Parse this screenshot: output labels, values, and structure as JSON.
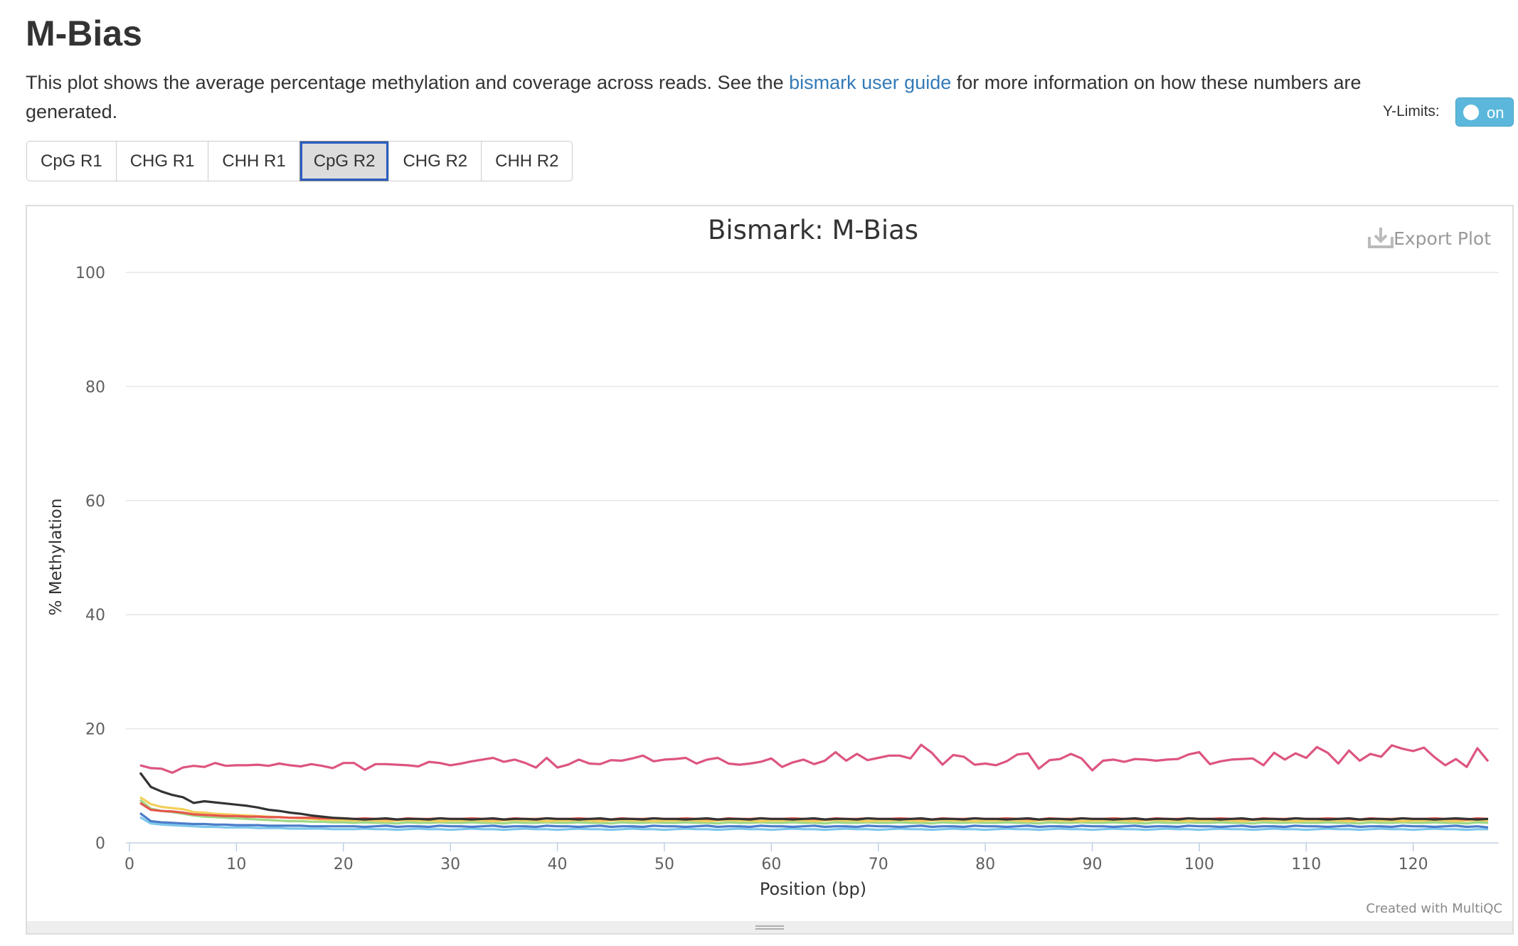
{
  "header": {
    "title": "M-Bias",
    "description_before": "This plot shows the average percentage methylation and coverage across reads. See the ",
    "link_text": "bismark user guide",
    "description_after": " for more information on how these numbers are generated.",
    "ylimits_label": "Y-Limits:",
    "toggle_text": "on"
  },
  "buttons": [
    "CpG R1",
    "CHG R1",
    "CHH R1",
    "CpG R2",
    "CHG R2",
    "CHH R2"
  ],
  "active_button": 3,
  "export_label": "Export Plot",
  "credit": "Created with MultiQC",
  "chart_data": {
    "type": "line",
    "title": "Bismark: M-Bias",
    "x_label": "Position (bp)",
    "y_label": "% Methylation",
    "xlim": [
      0,
      128
    ],
    "ylim": [
      0,
      100
    ],
    "xticks": [
      0,
      10,
      20,
      30,
      40,
      50,
      60,
      70,
      80,
      90,
      100,
      110,
      120
    ],
    "yticks": [
      0,
      20,
      40,
      60,
      80,
      100
    ],
    "grid": true,
    "x": [
      1,
      2,
      3,
      4,
      5,
      6,
      7,
      8,
      9,
      10,
      11,
      12,
      13,
      14,
      15,
      16,
      17,
      18,
      19,
      20,
      21,
      22,
      23,
      24,
      25,
      26,
      27,
      28,
      29,
      30,
      31,
      32,
      33,
      34,
      35,
      36,
      37,
      38,
      39,
      40,
      41,
      42,
      43,
      44,
      45,
      46,
      47,
      48,
      49,
      50,
      51,
      52,
      53,
      54,
      55,
      56,
      57,
      58,
      59,
      60,
      61,
      62,
      63,
      64,
      65,
      66,
      67,
      68,
      69,
      70,
      71,
      72,
      73,
      74,
      75,
      76,
      77,
      78,
      79,
      80,
      81,
      82,
      83,
      84,
      85,
      86,
      87,
      88,
      89,
      90,
      91,
      92,
      93,
      94,
      95,
      96,
      97,
      98,
      99,
      100,
      101,
      102,
      103,
      104,
      105,
      106,
      107,
      108,
      109,
      110,
      111,
      112,
      113,
      114,
      115,
      116,
      117,
      118,
      119,
      120,
      121,
      122,
      123,
      124,
      125,
      126,
      127
    ],
    "series": [
      {
        "color": "#7cc6ec",
        "values": [
          4.5,
          3.4,
          3.2,
          3.1,
          3.0,
          2.9,
          2.8,
          2.8,
          2.7,
          2.7,
          2.7,
          2.6,
          2.6,
          2.6,
          2.5,
          2.5,
          2.5,
          2.5,
          2.4,
          2.4,
          2.4,
          2.5,
          2.4,
          2.4,
          2.3,
          2.4,
          2.5,
          2.4,
          2.4,
          2.3,
          2.4,
          2.5,
          2.4,
          2.4,
          2.3,
          2.4,
          2.5,
          2.4,
          2.4,
          2.3,
          2.4,
          2.5,
          2.4,
          2.4,
          2.3,
          2.4,
          2.5,
          2.4,
          2.4,
          2.3,
          2.4,
          2.5,
          2.4,
          2.4,
          2.3,
          2.4,
          2.5,
          2.4,
          2.4,
          2.3,
          2.4,
          2.5,
          2.4,
          2.4,
          2.3,
          2.4,
          2.5,
          2.4,
          2.4,
          2.3,
          2.4,
          2.5,
          2.4,
          2.4,
          2.3,
          2.4,
          2.5,
          2.4,
          2.4,
          2.3,
          2.4,
          2.5,
          2.4,
          2.4,
          2.3,
          2.4,
          2.5,
          2.4,
          2.4,
          2.3,
          2.4,
          2.5,
          2.4,
          2.4,
          2.3,
          2.4,
          2.5,
          2.4,
          2.4,
          2.3,
          2.4,
          2.5,
          2.4,
          2.4,
          2.3,
          2.4,
          2.5,
          2.4,
          2.4,
          2.3,
          2.4,
          2.5,
          2.4,
          2.4,
          2.3,
          2.4,
          2.5,
          2.4,
          2.4,
          2.3,
          2.4,
          2.5,
          2.4,
          2.4,
          2.3,
          2.4,
          2.4
        ]
      },
      {
        "color": "#4a7cc9",
        "values": [
          5.2,
          3.8,
          3.6,
          3.5,
          3.4,
          3.3,
          3.3,
          3.2,
          3.2,
          3.1,
          3.1,
          3.1,
          3.0,
          3.0,
          3.0,
          3.0,
          2.9,
          2.9,
          2.9,
          2.9,
          2.9,
          2.8,
          2.9,
          3.0,
          2.8,
          2.9,
          2.9,
          2.8,
          3.0,
          2.9,
          2.9,
          2.8,
          2.9,
          3.0,
          2.8,
          2.9,
          2.9,
          2.8,
          3.0,
          2.9,
          2.9,
          2.8,
          2.9,
          3.0,
          2.8,
          2.9,
          2.9,
          2.8,
          3.0,
          2.9,
          2.9,
          2.8,
          2.9,
          3.0,
          2.8,
          2.9,
          2.9,
          2.8,
          3.0,
          2.9,
          2.9,
          2.8,
          2.9,
          3.0,
          2.8,
          2.9,
          2.9,
          2.8,
          3.0,
          2.9,
          2.9,
          2.8,
          2.9,
          3.0,
          2.8,
          2.9,
          2.9,
          2.8,
          3.0,
          2.9,
          2.9,
          2.8,
          2.9,
          3.0,
          2.8,
          2.9,
          2.9,
          2.8,
          3.0,
          2.9,
          2.9,
          2.8,
          2.9,
          3.0,
          2.8,
          2.9,
          2.9,
          2.8,
          3.0,
          2.9,
          2.9,
          2.8,
          2.9,
          3.0,
          2.8,
          2.9,
          2.9,
          2.8,
          3.0,
          2.9,
          2.9,
          2.8,
          2.9,
          3.0,
          2.8,
          2.9,
          2.9,
          2.8,
          3.0,
          2.9,
          2.9,
          2.8,
          2.9,
          3.0,
          2.8,
          2.9,
          2.7
        ]
      },
      {
        "color": "#9ed888",
        "values": [
          7.5,
          6.0,
          5.6,
          5.4,
          5.1,
          4.8,
          4.6,
          4.5,
          4.4,
          4.3,
          4.2,
          4.1,
          4.0,
          3.9,
          3.8,
          3.8,
          3.7,
          3.7,
          3.6,
          3.6,
          3.5,
          3.6,
          3.5,
          3.5,
          3.4,
          3.6,
          3.5,
          3.5,
          3.6,
          3.5,
          3.5,
          3.6,
          3.5,
          3.5,
          3.4,
          3.6,
          3.5,
          3.5,
          3.6,
          3.5,
          3.5,
          3.6,
          3.5,
          3.5,
          3.4,
          3.6,
          3.5,
          3.5,
          3.6,
          3.5,
          3.5,
          3.6,
          3.5,
          3.5,
          3.4,
          3.6,
          3.5,
          3.5,
          3.6,
          3.5,
          3.5,
          3.6,
          3.5,
          3.5,
          3.4,
          3.6,
          3.5,
          3.5,
          3.6,
          3.5,
          3.5,
          3.6,
          3.5,
          3.5,
          3.4,
          3.6,
          3.5,
          3.5,
          3.6,
          3.5,
          3.5,
          3.6,
          3.5,
          3.5,
          3.4,
          3.6,
          3.5,
          3.5,
          3.6,
          3.5,
          3.5,
          3.6,
          3.5,
          3.5,
          3.4,
          3.6,
          3.5,
          3.5,
          3.6,
          3.5,
          3.5,
          3.6,
          3.5,
          3.5,
          3.4,
          3.6,
          3.5,
          3.5,
          3.6,
          3.5,
          3.5,
          3.6,
          3.5,
          3.5,
          3.4,
          3.6,
          3.5,
          3.5,
          3.6,
          3.5,
          3.5,
          3.6,
          3.5,
          3.5,
          3.4,
          3.6,
          3.5
        ]
      },
      {
        "color": "#f2cf5b",
        "values": [
          8.0,
          6.8,
          6.3,
          6.1,
          5.9,
          5.4,
          5.3,
          5.1,
          5.0,
          4.9,
          4.8,
          4.7,
          4.6,
          4.5,
          4.4,
          4.3,
          4.2,
          4.1,
          4.0,
          4.0,
          3.9,
          4.0,
          3.9,
          3.8,
          3.9,
          4.0,
          3.9,
          3.9,
          3.8,
          3.9,
          3.9,
          4.0,
          3.9,
          3.8,
          3.9,
          4.0,
          3.9,
          3.9,
          3.8,
          3.9,
          3.9,
          4.0,
          3.9,
          3.8,
          3.9,
          4.0,
          3.9,
          3.9,
          3.8,
          3.9,
          3.9,
          4.0,
          3.9,
          3.8,
          3.9,
          4.0,
          3.9,
          3.9,
          3.8,
          3.9,
          3.9,
          4.0,
          3.9,
          3.8,
          3.9,
          4.0,
          3.9,
          3.9,
          3.8,
          3.9,
          3.9,
          4.0,
          3.9,
          3.8,
          3.9,
          4.0,
          3.9,
          3.9,
          3.8,
          3.9,
          3.9,
          4.0,
          3.9,
          3.8,
          3.9,
          4.0,
          3.9,
          3.9,
          3.8,
          3.9,
          3.9,
          4.0,
          3.9,
          3.8,
          3.9,
          4.0,
          3.9,
          3.9,
          3.8,
          3.9,
          3.9,
          4.0,
          3.9,
          3.8,
          3.9,
          4.0,
          3.9,
          3.9,
          3.8,
          3.9,
          3.9,
          4.0,
          3.9,
          3.8,
          3.9,
          4.0,
          3.9,
          3.9,
          3.8,
          3.9,
          3.9,
          4.0,
          3.9,
          3.8,
          3.9,
          4.0,
          3.9
        ]
      },
      {
        "color": "#e4564b",
        "values": [
          7.0,
          5.8,
          5.6,
          5.5,
          5.3,
          5.0,
          4.9,
          4.8,
          4.7,
          4.7,
          4.6,
          4.6,
          4.5,
          4.5,
          4.4,
          4.4,
          4.4,
          4.3,
          4.3,
          4.3,
          4.2,
          4.3,
          4.2,
          4.2,
          4.1,
          4.3,
          4.2,
          4.2,
          4.3,
          4.2,
          4.2,
          4.3,
          4.2,
          4.2,
          4.1,
          4.3,
          4.2,
          4.2,
          4.3,
          4.2,
          4.2,
          4.3,
          4.2,
          4.2,
          4.1,
          4.3,
          4.2,
          4.2,
          4.3,
          4.2,
          4.2,
          4.3,
          4.2,
          4.2,
          4.1,
          4.3,
          4.2,
          4.2,
          4.3,
          4.2,
          4.2,
          4.3,
          4.2,
          4.2,
          4.1,
          4.3,
          4.2,
          4.2,
          4.3,
          4.2,
          4.2,
          4.3,
          4.2,
          4.2,
          4.1,
          4.3,
          4.2,
          4.2,
          4.3,
          4.2,
          4.2,
          4.3,
          4.2,
          4.2,
          4.1,
          4.3,
          4.2,
          4.2,
          4.3,
          4.2,
          4.2,
          4.3,
          4.2,
          4.2,
          4.1,
          4.3,
          4.2,
          4.2,
          4.3,
          4.2,
          4.2,
          4.3,
          4.2,
          4.2,
          4.1,
          4.3,
          4.2,
          4.2,
          4.3,
          4.2,
          4.2,
          4.3,
          4.2,
          4.2,
          4.1,
          4.3,
          4.2,
          4.2,
          4.3,
          4.2,
          4.2,
          4.3,
          4.2,
          4.2,
          4.1,
          4.3,
          4.2
        ]
      },
      {
        "color": "#333333",
        "values": [
          12.3,
          9.8,
          9.0,
          8.4,
          8.0,
          7.0,
          7.3,
          7.1,
          6.9,
          6.7,
          6.5,
          6.2,
          5.8,
          5.6,
          5.3,
          5.1,
          4.8,
          4.6,
          4.4,
          4.3,
          4.2,
          4.1,
          4.2,
          4.3,
          4.1,
          4.2,
          4.2,
          4.1,
          4.3,
          4.2,
          4.2,
          4.1,
          4.2,
          4.3,
          4.1,
          4.2,
          4.2,
          4.1,
          4.3,
          4.2,
          4.2,
          4.1,
          4.2,
          4.3,
          4.1,
          4.2,
          4.2,
          4.1,
          4.3,
          4.2,
          4.2,
          4.1,
          4.2,
          4.3,
          4.1,
          4.2,
          4.2,
          4.1,
          4.3,
          4.2,
          4.2,
          4.1,
          4.2,
          4.3,
          4.1,
          4.2,
          4.2,
          4.1,
          4.3,
          4.2,
          4.2,
          4.1,
          4.2,
          4.3,
          4.1,
          4.2,
          4.2,
          4.1,
          4.3,
          4.2,
          4.2,
          4.1,
          4.2,
          4.3,
          4.1,
          4.2,
          4.2,
          4.1,
          4.3,
          4.2,
          4.2,
          4.1,
          4.2,
          4.3,
          4.1,
          4.2,
          4.2,
          4.1,
          4.3,
          4.2,
          4.2,
          4.1,
          4.2,
          4.3,
          4.1,
          4.2,
          4.2,
          4.1,
          4.3,
          4.2,
          4.2,
          4.1,
          4.2,
          4.3,
          4.1,
          4.2,
          4.2,
          4.1,
          4.3,
          4.2,
          4.2,
          4.1,
          4.2,
          4.3,
          4.2,
          4.1,
          4.2
        ]
      },
      {
        "color": "#dd557f",
        "values": [
          13.6,
          13.1,
          13.0,
          12.3,
          13.2,
          13.5,
          13.3,
          14.0,
          13.5,
          13.6,
          13.6,
          13.7,
          13.5,
          13.9,
          13.6,
          13.4,
          13.8,
          13.5,
          13.1,
          14.0,
          14.0,
          12.8,
          13.8,
          13.8,
          13.7,
          13.6,
          13.4,
          14.2,
          14.0,
          13.6,
          13.9,
          14.3,
          14.6,
          14.9,
          14.2,
          14.6,
          14.0,
          13.2,
          14.9,
          13.2,
          13.7,
          14.6,
          13.9,
          13.8,
          14.5,
          14.4,
          14.8,
          15.3,
          14.3,
          14.6,
          14.7,
          14.9,
          13.9,
          14.6,
          14.9,
          13.9,
          13.7,
          13.9,
          14.2,
          14.8,
          13.3,
          14.1,
          14.6,
          13.8,
          14.4,
          15.9,
          14.4,
          15.6,
          14.5,
          14.9,
          15.3,
          15.3,
          14.8,
          17.2,
          15.8,
          13.7,
          15.4,
          15.1,
          13.7,
          13.9,
          13.6,
          14.3,
          15.5,
          15.7,
          13.0,
          14.5,
          14.7,
          15.6,
          14.8,
          12.7,
          14.4,
          14.6,
          14.2,
          14.7,
          14.6,
          14.4,
          14.6,
          14.7,
          15.5,
          15.9,
          13.8,
          14.3,
          14.6,
          14.7,
          14.8,
          13.6,
          15.8,
          14.6,
          15.7,
          14.9,
          16.8,
          15.8,
          13.9,
          16.2,
          14.4,
          15.6,
          15.1,
          17.1,
          16.5,
          16.1,
          16.7,
          15.0,
          13.6,
          14.7,
          13.3,
          16.6,
          14.3
        ]
      }
    ]
  }
}
